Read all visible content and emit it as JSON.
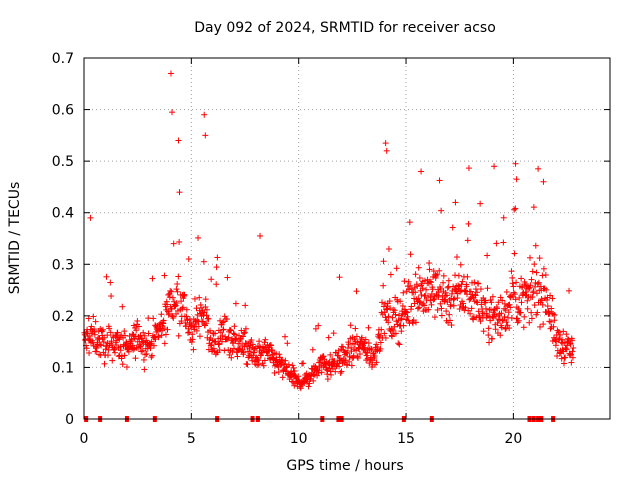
{
  "chart_data": {
    "type": "scatter",
    "title": "Day 092 of 2024, SRMTID for receiver acso",
    "xlabel": "GPS time / hours",
    "ylabel": "SRMTID / TECUs",
    "xlim": [
      0,
      24.5
    ],
    "ylim": [
      0,
      0.7
    ],
    "x_ticks": [
      0,
      5,
      10,
      15,
      20
    ],
    "y_ticks": [
      0,
      0.1,
      0.2,
      0.3,
      0.4,
      0.5,
      0.6,
      0.7
    ],
    "grid": true,
    "marker": "+",
    "color": "#ff0000",
    "series": [
      {
        "name": "SRMTID",
        "trend": {
          "x": [
            0,
            0.5,
            1,
            1.5,
            2,
            2.5,
            3,
            3.5,
            4,
            4.5,
            5,
            5.5,
            6,
            6.5,
            7,
            7.5,
            8,
            8.5,
            9,
            9.5,
            10,
            10.5,
            11,
            11.5,
            12,
            12.5,
            13,
            13.5,
            14,
            14.5,
            15,
            15.5,
            16,
            16.5,
            17,
            17.5,
            18,
            18.5,
            19,
            19.5,
            20,
            20.5,
            21,
            21.5,
            22,
            22.5,
            22.8
          ],
          "y": [
            0.15,
            0.16,
            0.14,
            0.15,
            0.13,
            0.16,
            0.14,
            0.17,
            0.22,
            0.24,
            0.16,
            0.22,
            0.14,
            0.17,
            0.15,
            0.14,
            0.12,
            0.13,
            0.11,
            0.09,
            0.07,
            0.08,
            0.11,
            0.1,
            0.12,
            0.13,
            0.14,
            0.12,
            0.2,
            0.18,
            0.22,
            0.25,
            0.24,
            0.25,
            0.23,
            0.25,
            0.24,
            0.22,
            0.2,
            0.2,
            0.24,
            0.22,
            0.25,
            0.25,
            0.15,
            0.14,
            0.13
          ]
        },
        "peaks": [
          {
            "x": 4.05,
            "y": 0.67
          },
          {
            "x": 4.1,
            "y": 0.595
          },
          {
            "x": 5.6,
            "y": 0.59
          },
          {
            "x": 5.65,
            "y": 0.55
          },
          {
            "x": 4.4,
            "y": 0.54
          },
          {
            "x": 14.05,
            "y": 0.535
          },
          {
            "x": 14.1,
            "y": 0.52
          },
          {
            "x": 20.1,
            "y": 0.495
          },
          {
            "x": 20.15,
            "y": 0.465
          },
          {
            "x": 15.7,
            "y": 0.48
          },
          {
            "x": 19.1,
            "y": 0.49
          },
          {
            "x": 21.4,
            "y": 0.46
          },
          {
            "x": 17.3,
            "y": 0.42
          },
          {
            "x": 0.3,
            "y": 0.39
          },
          {
            "x": 8.2,
            "y": 0.355
          },
          {
            "x": 11.9,
            "y": 0.275
          }
        ]
      }
    ],
    "gap_markers_hours": [
      0.1,
      0.75,
      2.0,
      3.3,
      6.2,
      7.85,
      8.1,
      11.1,
      11.85,
      12.0,
      14.9,
      16.2,
      20.75,
      20.95,
      21.15,
      21.3,
      21.85
    ]
  }
}
